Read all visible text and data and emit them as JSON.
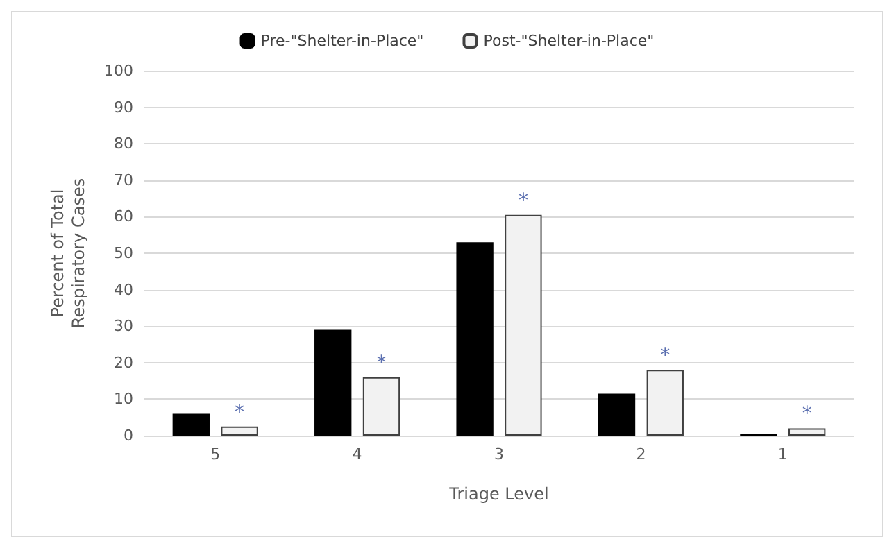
{
  "chart_data": {
    "type": "bar",
    "xlabel": "Triage Level",
    "ylabel": "Percent of Total\nRespiratory Cases",
    "categories": [
      "5",
      "4",
      "3",
      "2",
      "1"
    ],
    "series": [
      {
        "name": "Pre-\"Shelter-in-Place\"",
        "color": "#000000",
        "values": [
          6,
          29,
          53,
          11.5,
          0.5
        ]
      },
      {
        "name": "Post-\"Shelter-in-Place\"",
        "color": "#f2f2f2",
        "values": [
          2.5,
          16,
          60.5,
          18,
          2
        ]
      }
    ],
    "ylim": [
      0,
      100
    ],
    "yticks": [
      0,
      10,
      20,
      30,
      40,
      50,
      60,
      70,
      80,
      90,
      100
    ],
    "grid": "y",
    "legend": "top",
    "annotations": [
      {
        "text": "*",
        "x": "5",
        "y": 2.5
      },
      {
        "text": "*",
        "x": "4",
        "y": 16
      },
      {
        "text": "*",
        "x": "3",
        "y": 60.5
      },
      {
        "text": "*",
        "x": "2",
        "y": 18
      },
      {
        "text": "*",
        "x": "1",
        "y": 2
      }
    ]
  }
}
